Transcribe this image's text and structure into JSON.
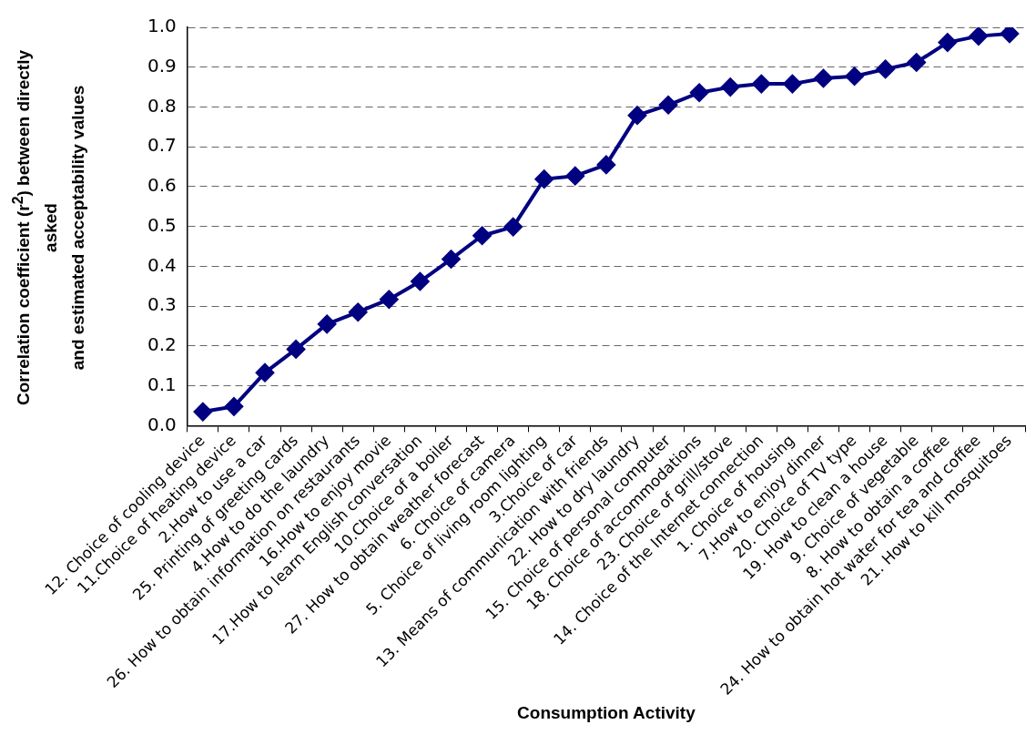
{
  "chart_data": {
    "type": "line",
    "xlabel": "Consumption Activity",
    "ylabel": "Correlation coefficient (r$^{2}$) between directly asked\nand estimated acceptability values",
    "categories": [
      "12. Choice of cooling device",
      "11.Choice of heating device",
      "2.How to use a car",
      "25. Printing of greeting cards",
      "4.How to do the laundry",
      "26. How to obtain information on restaurants",
      "16.How to enjoy movie",
      "17.How to learn English conversation",
      "10.Choice of a boiler",
      "27. How to obtain weather forecast",
      "6. Choice of camera",
      "5. Choice of living room lighting",
      "3.Choice of car",
      "13. Means of communication with friends",
      "22. How to dry laundry",
      "15. Choice of personal computer",
      "18. Choice of accommodations",
      "23. Choice of grill/stove",
      "14. Choice of the Internet connection",
      "1. Choice of housing",
      "7.How to enjoy dinner",
      "20. Choice of TV type",
      "19. How to clean a house",
      "9. Choice of vegetable",
      "8. How to obtain a coffee",
      "24. How to obtain hot water for tea and coffee",
      "21. How to kill mosquitoes"
    ],
    "series": [
      {
        "color": "#000080",
        "values": [
          0.035,
          0.048,
          0.133,
          0.192,
          0.255,
          0.285,
          0.317,
          0.362,
          0.418,
          0.477,
          0.499,
          0.619,
          0.627,
          0.655,
          0.779,
          0.805,
          0.836,
          0.85,
          0.858,
          0.858,
          0.872,
          0.877,
          0.895,
          0.912,
          0.962,
          0.978,
          0.984
        ]
      }
    ],
    "ylim": [
      0,
      1
    ],
    "yticks": [
      {
        "value": 0,
        "label": "0.0"
      },
      {
        "value": 0.1,
        "label": "0.1"
      },
      {
        "value": 0.2,
        "label": "0.2"
      },
      {
        "value": 0.3,
        "label": "0.3"
      },
      {
        "value": 0.4,
        "label": "0.4"
      },
      {
        "value": 0.5,
        "label": "0.5"
      },
      {
        "value": 0.6,
        "label": "0.6"
      },
      {
        "value": 0.7,
        "label": "0.7"
      },
      {
        "value": 0.8,
        "label": "0.8"
      },
      {
        "value": 0.9,
        "label": "0.9"
      },
      {
        "value": 1,
        "label": "1.0"
      }
    ],
    "grid": "y",
    "legend": false,
    "marker": "diamond",
    "line_style": "solid"
  }
}
